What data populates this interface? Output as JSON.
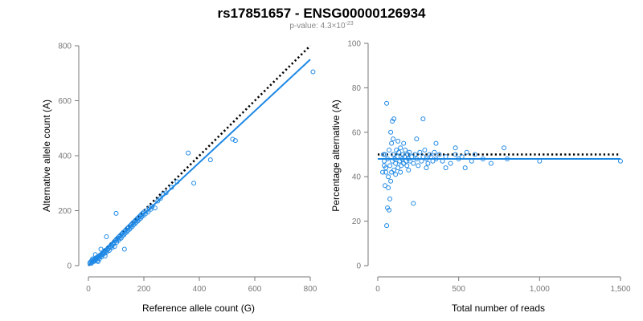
{
  "figure": {
    "title": "rs17851657 - ENSG00000126934",
    "subtitle_prefix": "p-value: 4.3×10",
    "subtitle_exponent": "-23"
  },
  "colors": {
    "points": "#1e88e5",
    "fit_line": "#1e88e5",
    "reference_line": "#000000",
    "axis": "#777777"
  },
  "chart_data": [
    {
      "type": "scatter",
      "title": "",
      "xlabel": "Reference allele count (G)",
      "ylabel": "Alternative allele count (A)",
      "xlim": [
        0,
        800
      ],
      "ylim": [
        0,
        800
      ],
      "xticks": [
        0,
        200,
        400,
        600,
        800
      ],
      "xtick_labels": [
        "0",
        "200",
        "400",
        "600",
        "800"
      ],
      "yticks": [
        0,
        200,
        400,
        600,
        800
      ],
      "ytick_labels": [
        "0",
        "200",
        "400",
        "600",
        "800"
      ],
      "grid": false,
      "lines": [
        {
          "kind": "reference",
          "style": "dotted",
          "x": [
            0,
            800
          ],
          "y": [
            0,
            800
          ]
        },
        {
          "kind": "fit",
          "style": "solid",
          "x": [
            0,
            800
          ],
          "y": [
            0,
            750
          ]
        }
      ],
      "points": [
        [
          5,
          10
        ],
        [
          8,
          14
        ],
        [
          10,
          8
        ],
        [
          12,
          18
        ],
        [
          14,
          12
        ],
        [
          16,
          20
        ],
        [
          18,
          15
        ],
        [
          20,
          22
        ],
        [
          22,
          16
        ],
        [
          24,
          26
        ],
        [
          26,
          20
        ],
        [
          28,
          24
        ],
        [
          30,
          30
        ],
        [
          32,
          18
        ],
        [
          34,
          28
        ],
        [
          36,
          34
        ],
        [
          38,
          30
        ],
        [
          40,
          25
        ],
        [
          42,
          38
        ],
        [
          44,
          35
        ],
        [
          46,
          40
        ],
        [
          48,
          32
        ],
        [
          50,
          45
        ],
        [
          52,
          40
        ],
        [
          55,
          50
        ],
        [
          58,
          45
        ],
        [
          60,
          55
        ],
        [
          62,
          52
        ],
        [
          65,
          48
        ],
        [
          68,
          60
        ],
        [
          70,
          58
        ],
        [
          72,
          65
        ],
        [
          75,
          55
        ],
        [
          78,
          70
        ],
        [
          80,
          68
        ],
        [
          82,
          75
        ],
        [
          85,
          65
        ],
        [
          88,
          80
        ],
        [
          90,
          78
        ],
        [
          92,
          85
        ],
        [
          95,
          70
        ],
        [
          98,
          90
        ],
        [
          100,
          95
        ],
        [
          102,
          85
        ],
        [
          105,
          100
        ],
        [
          108,
          92
        ],
        [
          110,
          105
        ],
        [
          112,
          98
        ],
        [
          115,
          110
        ],
        [
          118,
          100
        ],
        [
          120,
          115
        ],
        [
          122,
          108
        ],
        [
          125,
          120
        ],
        [
          128,
          112
        ],
        [
          130,
          125
        ],
        [
          132,
          118
        ],
        [
          135,
          130
        ],
        [
          138,
          122
        ],
        [
          140,
          135
        ],
        [
          142,
          128
        ],
        [
          145,
          140
        ],
        [
          148,
          132
        ],
        [
          150,
          145
        ],
        [
          152,
          138
        ],
        [
          155,
          150
        ],
        [
          158,
          142
        ],
        [
          160,
          155
        ],
        [
          162,
          148
        ],
        [
          165,
          160
        ],
        [
          168,
          152
        ],
        [
          170,
          165
        ],
        [
          172,
          158
        ],
        [
          175,
          170
        ],
        [
          178,
          162
        ],
        [
          180,
          175
        ],
        [
          182,
          168
        ],
        [
          185,
          180
        ],
        [
          188,
          172
        ],
        [
          190,
          185
        ],
        [
          192,
          178
        ],
        [
          195,
          190
        ],
        [
          198,
          182
        ],
        [
          200,
          195
        ],
        [
          205,
          188
        ],
        [
          210,
          200
        ],
        [
          215,
          195
        ],
        [
          220,
          210
        ],
        [
          225,
          205
        ],
        [
          230,
          215
        ],
        [
          240,
          210
        ],
        [
          250,
          235
        ],
        [
          260,
          245
        ],
        [
          270,
          260
        ],
        [
          280,
          265
        ],
        [
          300,
          285
        ],
        [
          320,
          305
        ],
        [
          360,
          410
        ],
        [
          380,
          300
        ],
        [
          440,
          385
        ],
        [
          520,
          460
        ],
        [
          530,
          455
        ],
        [
          810,
          705
        ],
        [
          100,
          190
        ],
        [
          65,
          105
        ],
        [
          130,
          60
        ],
        [
          25,
          40
        ],
        [
          35,
          15
        ],
        [
          45,
          60
        ],
        [
          15,
          25
        ],
        [
          60,
          35
        ]
      ]
    },
    {
      "type": "scatter",
      "title": "",
      "xlabel": "Total number of reads",
      "ylabel": "Percentage alternative (A)",
      "xlim": [
        0,
        1500
      ],
      "ylim": [
        0,
        100
      ],
      "xticks": [
        0,
        500,
        1000,
        1500
      ],
      "xtick_labels": [
        "0",
        "500",
        "1,000",
        "1,500"
      ],
      "yticks": [
        0,
        20,
        40,
        60,
        80,
        100
      ],
      "ytick_labels": [
        "0",
        "20",
        "40",
        "60",
        "80",
        "100"
      ],
      "grid": false,
      "lines": [
        {
          "kind": "reference",
          "style": "dotted",
          "x": [
            0,
            1500
          ],
          "y": [
            50,
            50
          ]
        },
        {
          "kind": "fit",
          "style": "solid",
          "x": [
            0,
            1500
          ],
          "y": [
            48,
            48
          ]
        }
      ],
      "points": [
        [
          30,
          42
        ],
        [
          35,
          50
        ],
        [
          40,
          47
        ],
        [
          45,
          36
        ],
        [
          50,
          44
        ],
        [
          55,
          73
        ],
        [
          60,
          48
        ],
        [
          65,
          40
        ],
        [
          70,
          52
        ],
        [
          75,
          45
        ],
        [
          80,
          38
        ],
        [
          85,
          55
        ],
        [
          90,
          47
        ],
        [
          95,
          50
        ],
        [
          100,
          43
        ],
        [
          105,
          48
        ],
        [
          110,
          46
        ],
        [
          115,
          52
        ],
        [
          120,
          49
        ],
        [
          125,
          44
        ],
        [
          130,
          51
        ],
        [
          135,
          47
        ],
        [
          140,
          53
        ],
        [
          145,
          45
        ],
        [
          150,
          48
        ],
        [
          155,
          50
        ],
        [
          160,
          46
        ],
        [
          165,
          49
        ],
        [
          170,
          52
        ],
        [
          175,
          47
        ],
        [
          180,
          45
        ],
        [
          185,
          50
        ],
        [
          190,
          48
        ],
        [
          195,
          51
        ],
        [
          200,
          47
        ],
        [
          210,
          49
        ],
        [
          220,
          46
        ],
        [
          230,
          50
        ],
        [
          240,
          48
        ],
        [
          250,
          45
        ],
        [
          260,
          51
        ],
        [
          270,
          47
        ],
        [
          280,
          49
        ],
        [
          290,
          52
        ],
        [
          300,
          48
        ],
        [
          310,
          46
        ],
        [
          320,
          50
        ],
        [
          330,
          49
        ],
        [
          340,
          47
        ],
        [
          350,
          51
        ],
        [
          360,
          48
        ],
        [
          380,
          50
        ],
        [
          400,
          47
        ],
        [
          420,
          49
        ],
        [
          450,
          46
        ],
        [
          480,
          50
        ],
        [
          500,
          48
        ],
        [
          520,
          49
        ],
        [
          550,
          51
        ],
        [
          580,
          47
        ],
        [
          600,
          50
        ],
        [
          650,
          48
        ],
        [
          700,
          46
        ],
        [
          780,
          53
        ],
        [
          800,
          48
        ],
        [
          1000,
          47
        ],
        [
          1500,
          47
        ],
        [
          55,
          18
        ],
        [
          60,
          26
        ],
        [
          70,
          25
        ],
        [
          75,
          30
        ],
        [
          65,
          35
        ],
        [
          80,
          60
        ],
        [
          90,
          65
        ],
        [
          100,
          66
        ],
        [
          280,
          66
        ],
        [
          220,
          28
        ],
        [
          50,
          42
        ],
        [
          45,
          50
        ],
        [
          40,
          45
        ],
        [
          85,
          42
        ],
        [
          95,
          57
        ],
        [
          110,
          41
        ],
        [
          125,
          56
        ],
        [
          140,
          42
        ],
        [
          160,
          55
        ],
        [
          190,
          43
        ],
        [
          240,
          57
        ],
        [
          300,
          44
        ],
        [
          360,
          55
        ],
        [
          420,
          44
        ],
        [
          480,
          53
        ],
        [
          540,
          44
        ]
      ]
    }
  ]
}
